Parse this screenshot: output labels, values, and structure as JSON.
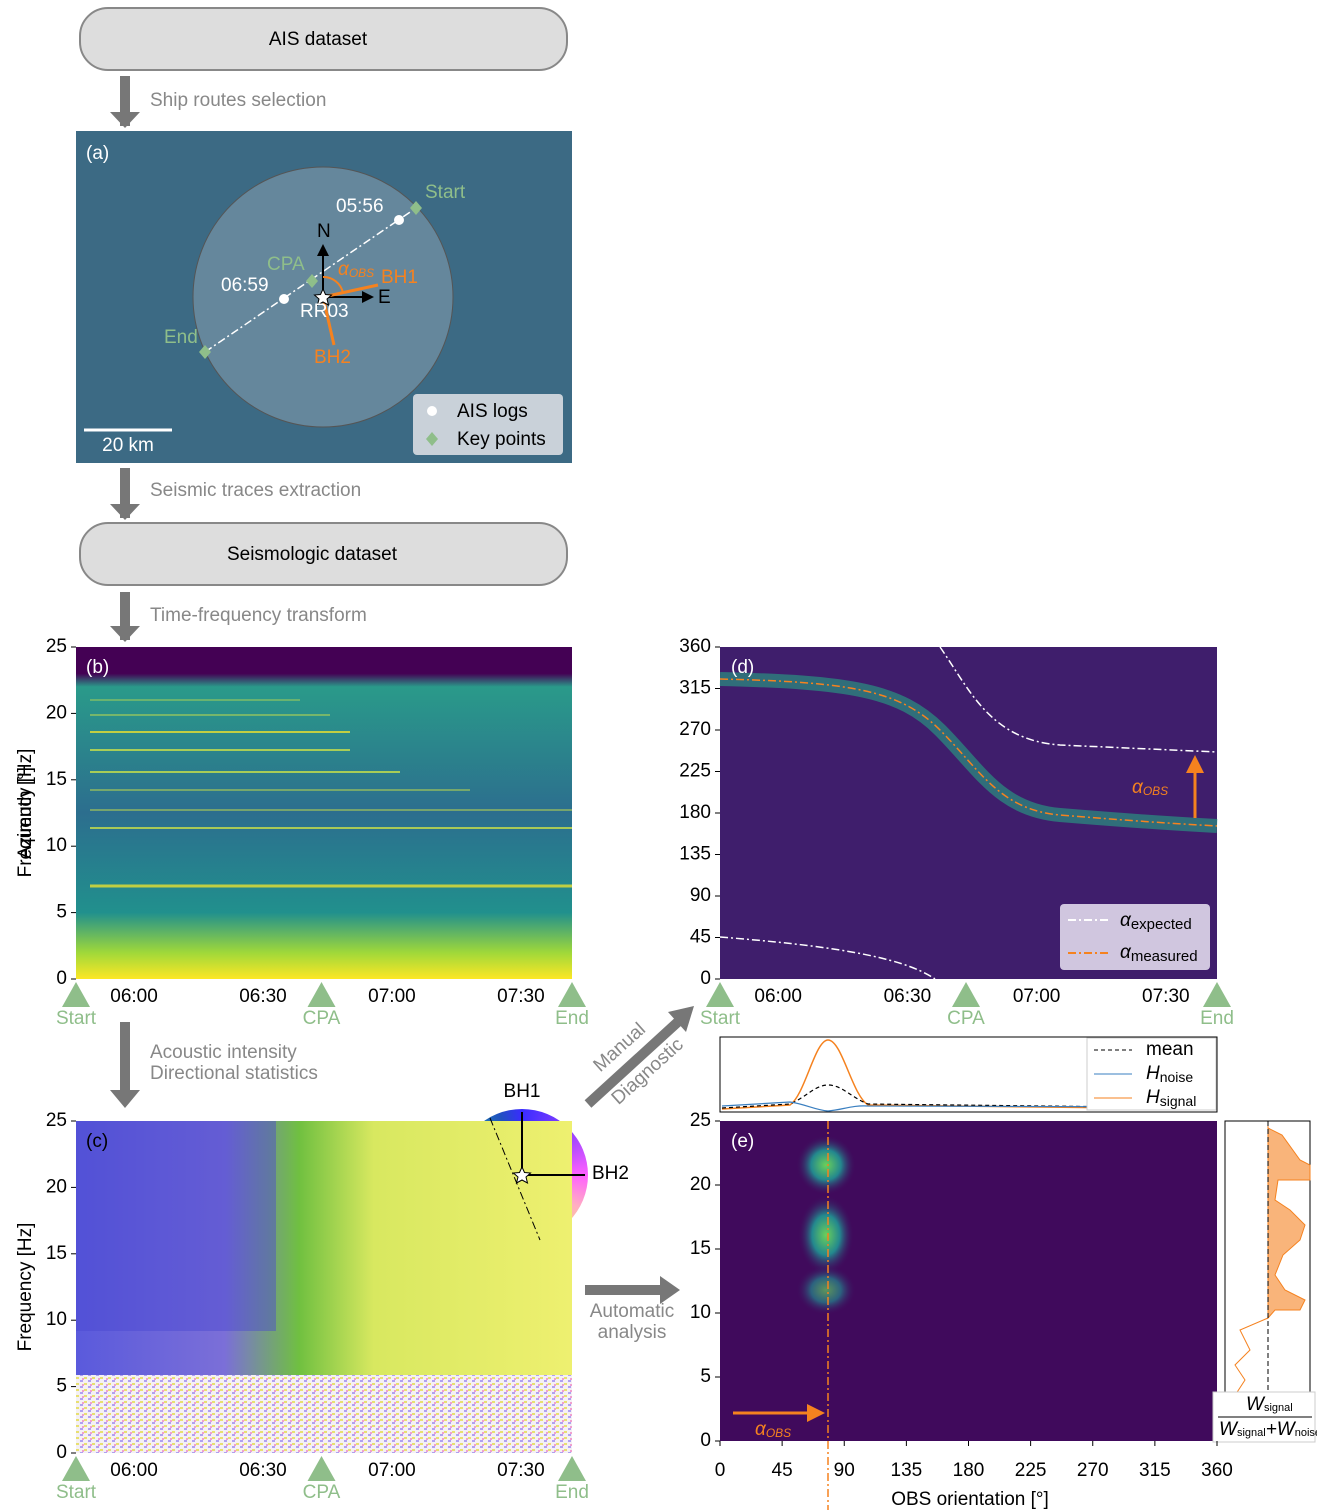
{
  "flow": {
    "box1": "AIS dataset",
    "step1": "Ship routes selection",
    "step2": "Seismic traces extraction",
    "box2": "Seismologic dataset",
    "step3": "Time-frequency transform",
    "step4": [
      "Acoustic intensity",
      "Directional statistics"
    ],
    "step5": [
      "Manual",
      "Diagnostic"
    ],
    "step6": [
      "Automatic",
      "analysis"
    ]
  },
  "panel_a": {
    "label": "(a)",
    "times": [
      "05:56",
      "06:59"
    ],
    "key_points": [
      "Start",
      "CPA",
      "End"
    ],
    "north": "N",
    "east": "E",
    "station": "RR03",
    "bh1": "BH1",
    "bh2": "BH2",
    "alpha": "α",
    "alpha_sub": "OBS",
    "legend": [
      "AIS logs",
      "Key points"
    ],
    "scale": "20 km"
  },
  "panel_b": {
    "label": "(b)",
    "ylabel": "Frequency [Hz]",
    "ylim": [
      0,
      25
    ],
    "yticks": [
      0,
      5,
      10,
      15,
      20,
      25
    ],
    "xticks": [
      "06:00",
      "06:30",
      "07:00",
      "07:30"
    ],
    "markers": [
      "Start",
      "CPA",
      "End"
    ]
  },
  "panel_c": {
    "label": "(c)",
    "ylabel": "Frequency [Hz]",
    "ylim": [
      0,
      25
    ],
    "yticks": [
      0,
      5,
      10,
      15,
      20,
      25
    ],
    "xticks": [
      "06:00",
      "06:30",
      "07:00",
      "07:30"
    ],
    "markers": [
      "Start",
      "CPA",
      "End"
    ],
    "wheel": [
      "BH1",
      "BH2"
    ]
  },
  "panel_d": {
    "label": "(d)",
    "ylabel": "Azimuth [°]",
    "ylim": [
      0,
      360
    ],
    "yticks": [
      0,
      45,
      90,
      135,
      180,
      225,
      270,
      315,
      360
    ],
    "xticks": [
      "06:00",
      "06:30",
      "07:00",
      "07:30"
    ],
    "markers": [
      "Start",
      "CPA",
      "End"
    ],
    "annotation": {
      "symbol": "α",
      "sub": "OBS"
    },
    "legend": [
      {
        "symbol": "α",
        "sub": "expected"
      },
      {
        "symbol": "α",
        "sub": "measured"
      }
    ]
  },
  "panel_e_top": {
    "legend": [
      {
        "symbol": "mean",
        "sub": ""
      },
      {
        "symbol": "H",
        "sub": "noise"
      },
      {
        "symbol": "H",
        "sub": "signal"
      }
    ]
  },
  "panel_e": {
    "label": "(e)",
    "ylim": [
      0,
      25
    ],
    "yticks": [
      0,
      5,
      10,
      15,
      20,
      25
    ],
    "xlabel": "OBS orientation [°]",
    "xlim": [
      0,
      360
    ],
    "xticks": [
      0,
      45,
      90,
      135,
      180,
      225,
      270,
      315,
      360
    ],
    "annotation": {
      "symbol": "α",
      "sub": "OBS"
    },
    "ratio": {
      "num": "W",
      "num_sub": "signal",
      "den1": "W",
      "den1_sub": "signal",
      "den2": "+W",
      "den2_sub": "noise"
    }
  }
}
